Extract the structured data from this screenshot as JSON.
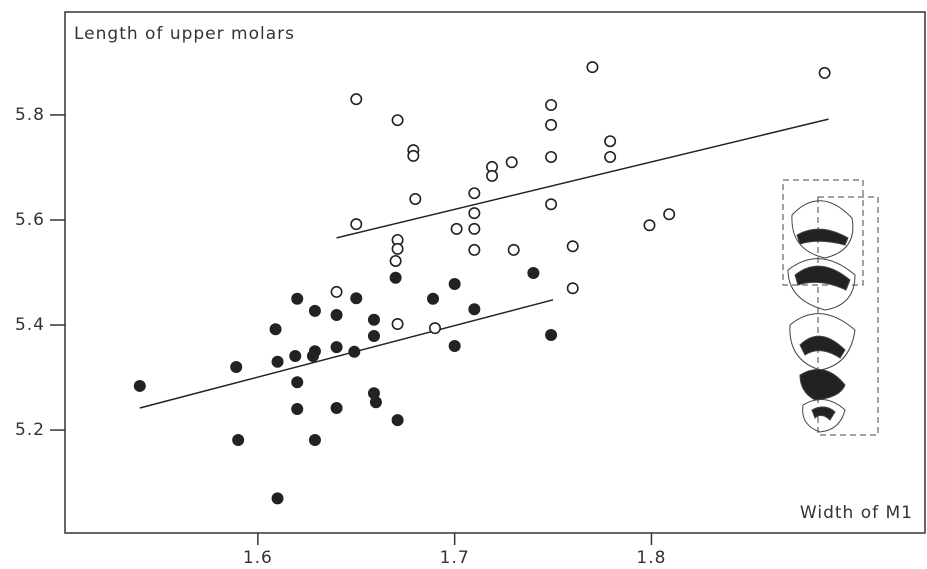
{
  "chart_data": {
    "type": "scatter",
    "y_label": "Length of upper molars",
    "x_label": "Width of M1",
    "xlim": [
      1.502,
      1.939
    ],
    "ylim": [
      5.004,
      5.996
    ],
    "xticks": [
      1.6,
      1.7,
      1.8
    ],
    "yticks": [
      5.2,
      5.4,
      5.6,
      5.8
    ],
    "series": [
      {
        "color": "#222222",
        "filled": false,
        "x": [
          1.65,
          1.671,
          1.679,
          1.679,
          1.68,
          1.65,
          1.671,
          1.671,
          1.67,
          1.671,
          1.64,
          1.69,
          1.701,
          1.71,
          1.71,
          1.71,
          1.71,
          1.719,
          1.719,
          1.729,
          1.73,
          1.749,
          1.749,
          1.749,
          1.749,
          1.77,
          1.779,
          1.779,
          1.76,
          1.76,
          1.799,
          1.809,
          1.888
        ],
        "values": [
          5.83,
          5.79,
          5.733,
          5.722,
          5.64,
          5.592,
          5.562,
          5.545,
          5.522,
          5.402,
          5.463,
          5.394,
          5.583,
          5.651,
          5.613,
          5.583,
          5.543,
          5.701,
          5.684,
          5.71,
          5.543,
          5.819,
          5.781,
          5.72,
          5.63,
          5.891,
          5.75,
          5.72,
          5.55,
          5.47,
          5.59,
          5.611,
          5.88
        ]
      },
      {
        "color": "#222222",
        "filled": true,
        "x": [
          1.54,
          1.59,
          1.589,
          1.609,
          1.61,
          1.62,
          1.619,
          1.62,
          1.62,
          1.61,
          1.629,
          1.628,
          1.629,
          1.629,
          1.64,
          1.64,
          1.64,
          1.65,
          1.649,
          1.659,
          1.659,
          1.659,
          1.66,
          1.67,
          1.671,
          1.689,
          1.7,
          1.7,
          1.71,
          1.74,
          1.749
        ],
        "values": [
          5.284,
          5.181,
          5.32,
          5.392,
          5.33,
          5.45,
          5.341,
          5.291,
          5.24,
          5.07,
          5.427,
          5.341,
          5.35,
          5.181,
          5.419,
          5.358,
          5.242,
          5.451,
          5.349,
          5.41,
          5.379,
          5.27,
          5.253,
          5.49,
          5.219,
          5.45,
          5.478,
          5.36,
          5.43,
          5.499,
          5.381
        ]
      }
    ],
    "lines": [
      {
        "color": "#222222",
        "x": [
          1.64,
          1.89
        ],
        "values": [
          5.566,
          5.792
        ]
      },
      {
        "color": "#222222",
        "x": [
          1.54,
          1.75
        ],
        "values": [
          5.242,
          5.448
        ]
      }
    ]
  }
}
